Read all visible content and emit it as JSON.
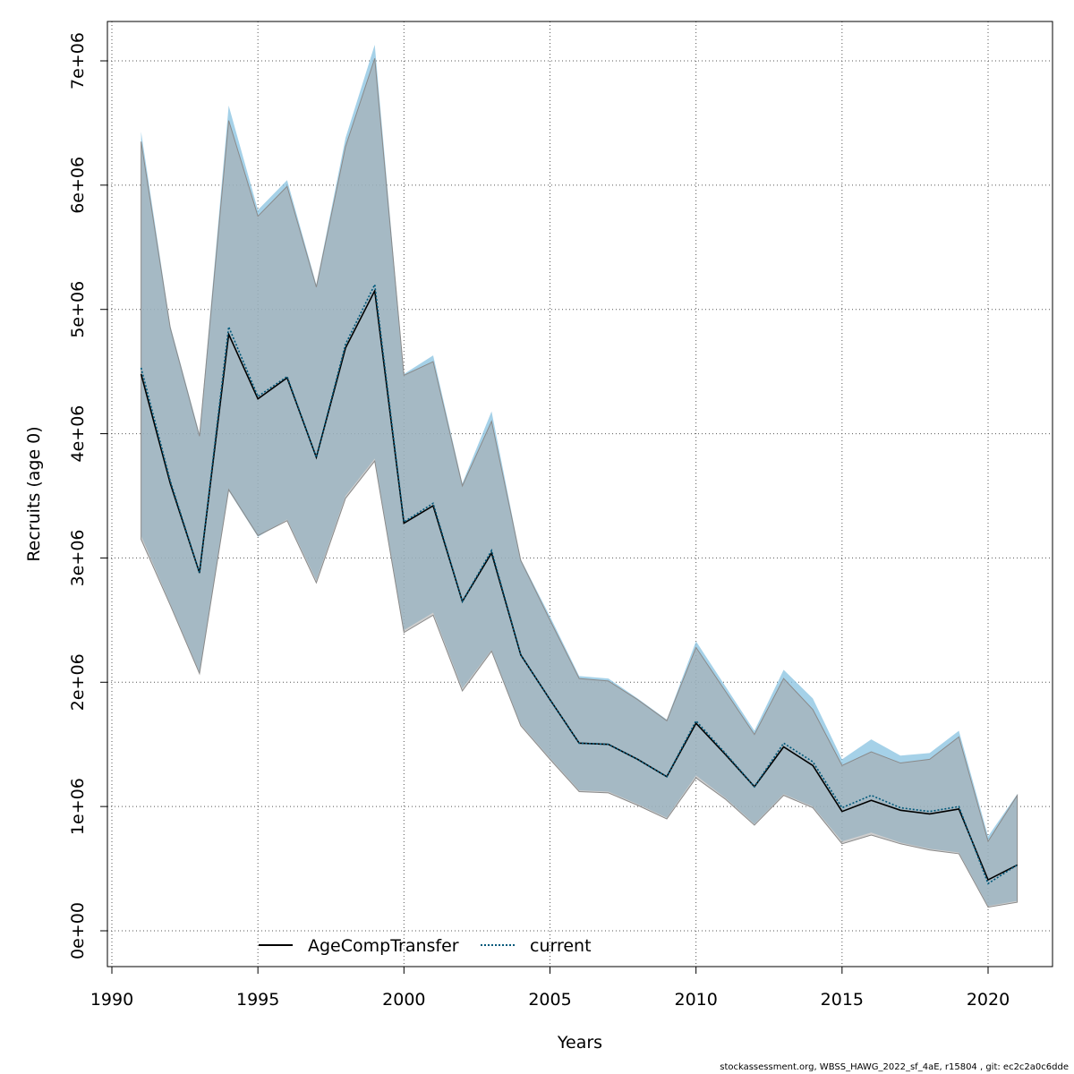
{
  "footer_text": "stockassessment.org, WBSS_HAWG_2022_sf_4aE, r15804 , git: ec2c2a0c6dde",
  "chart_data": {
    "type": "line",
    "title": "",
    "xlabel": "Years",
    "ylabel": "Recruits (age 0)",
    "xlim": [
      1990,
      2022
    ],
    "ylim": [
      -200000,
      7300000
    ],
    "grid": true,
    "legend_position": "bottom",
    "x_ticks": [
      1990,
      1995,
      2000,
      2005,
      2010,
      2015,
      2020
    ],
    "y_ticks": [
      0,
      1000000,
      2000000,
      3000000,
      4000000,
      5000000,
      6000000,
      7000000
    ],
    "y_tick_labels": [
      "0e+00",
      "1e+06",
      "2e+06",
      "3e+06",
      "4e+06",
      "5e+06",
      "6e+06",
      "7e+06"
    ],
    "x": [
      1991,
      1992,
      1993,
      1994,
      1995,
      1996,
      1997,
      1998,
      1999,
      2000,
      2001,
      2002,
      2003,
      2004,
      2005,
      2006,
      2007,
      2008,
      2009,
      2010,
      2011,
      2012,
      2013,
      2014,
      2015,
      2016,
      2017,
      2018,
      2019,
      2020,
      2021
    ],
    "series": [
      {
        "name": "AgeCompTransfer",
        "line_style": "solid",
        "color": "#000000",
        "band_color": "#a6a6a6",
        "values": [
          4480000,
          3600000,
          2880000,
          4800000,
          4280000,
          4450000,
          3810000,
          4690000,
          5150000,
          3280000,
          3420000,
          2650000,
          3040000,
          2220000,
          1860000,
          1510000,
          1500000,
          1380000,
          1240000,
          1670000,
          1420000,
          1160000,
          1480000,
          1330000,
          960000,
          1050000,
          970000,
          940000,
          980000,
          410000,
          530000
        ],
        "lower": [
          3150000,
          2620000,
          2070000,
          3550000,
          3180000,
          3300000,
          2800000,
          3480000,
          3780000,
          2400000,
          2540000,
          1930000,
          2250000,
          1650000,
          1380000,
          1120000,
          1110000,
          1010000,
          900000,
          1230000,
          1060000,
          850000,
          1090000,
          990000,
          700000,
          770000,
          700000,
          650000,
          620000,
          190000,
          230000
        ],
        "upper": [
          6350000,
          4850000,
          3980000,
          6520000,
          5750000,
          5990000,
          5180000,
          6310000,
          7020000,
          4470000,
          4580000,
          3580000,
          4100000,
          2980000,
          2500000,
          2030000,
          2010000,
          1860000,
          1690000,
          2280000,
          1930000,
          1580000,
          2030000,
          1780000,
          1330000,
          1440000,
          1350000,
          1380000,
          1560000,
          720000,
          1090000
        ]
      },
      {
        "name": "current",
        "line_style": "dotted",
        "color": "#00587a",
        "band_color": "#87c1e0",
        "values": [
          4530000,
          3620000,
          2880000,
          4860000,
          4300000,
          4460000,
          3810000,
          4720000,
          5200000,
          3290000,
          3440000,
          2650000,
          3060000,
          2220000,
          1860000,
          1510000,
          1500000,
          1380000,
          1240000,
          1690000,
          1430000,
          1160000,
          1510000,
          1360000,
          990000,
          1090000,
          990000,
          960000,
          1000000,
          380000,
          530000
        ],
        "lower": [
          3180000,
          2630000,
          2080000,
          3540000,
          3170000,
          3310000,
          2820000,
          3500000,
          3800000,
          2420000,
          2560000,
          1950000,
          2260000,
          1660000,
          1390000,
          1130000,
          1120000,
          1020000,
          910000,
          1250000,
          1070000,
          860000,
          1100000,
          1000000,
          720000,
          790000,
          710000,
          660000,
          630000,
          200000,
          240000
        ],
        "upper": [
          6430000,
          4870000,
          4000000,
          6640000,
          5800000,
          6040000,
          5200000,
          6380000,
          7130000,
          4480000,
          4630000,
          3600000,
          4180000,
          2990000,
          2530000,
          2050000,
          2030000,
          1870000,
          1700000,
          2330000,
          1970000,
          1610000,
          2100000,
          1870000,
          1380000,
          1540000,
          1410000,
          1430000,
          1610000,
          760000,
          1100000
        ]
      }
    ]
  }
}
